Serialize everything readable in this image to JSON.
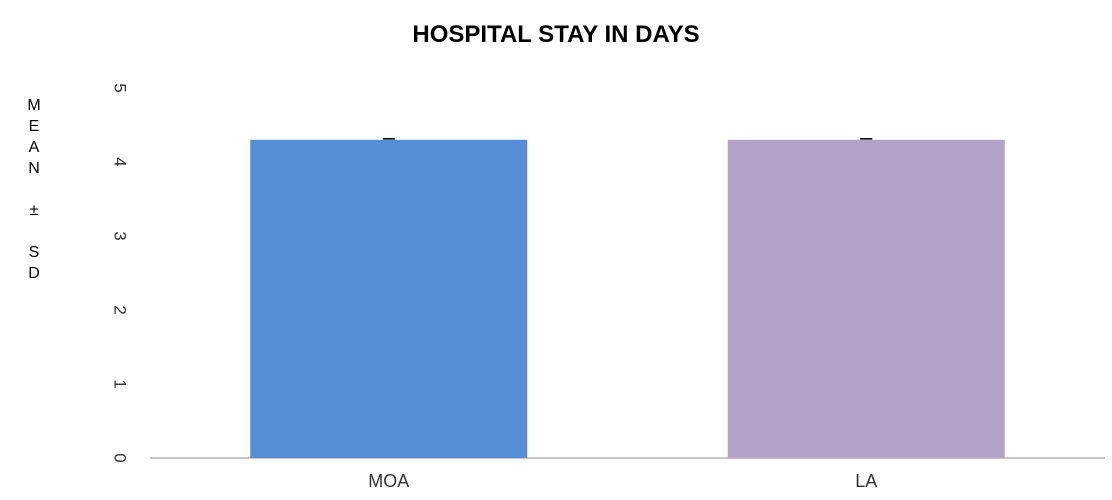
{
  "chart_data": {
    "type": "bar",
    "title": "HOSPITAL STAY IN  DAYS",
    "ylabel": "MEAN ± SD",
    "xlabel": "",
    "categories": [
      "MOA",
      "LA"
    ],
    "values": [
      4.3,
      4.3
    ],
    "error": [
      0.0,
      0.0
    ],
    "colors": [
      "#558ed5",
      "#b3a2c7"
    ],
    "ylim": [
      0,
      5
    ],
    "yticks": [
      "0",
      "1",
      "2",
      "3",
      "4",
      "5"
    ],
    "ytick_orientation": "rotated",
    "grid": false,
    "legend": "none"
  }
}
